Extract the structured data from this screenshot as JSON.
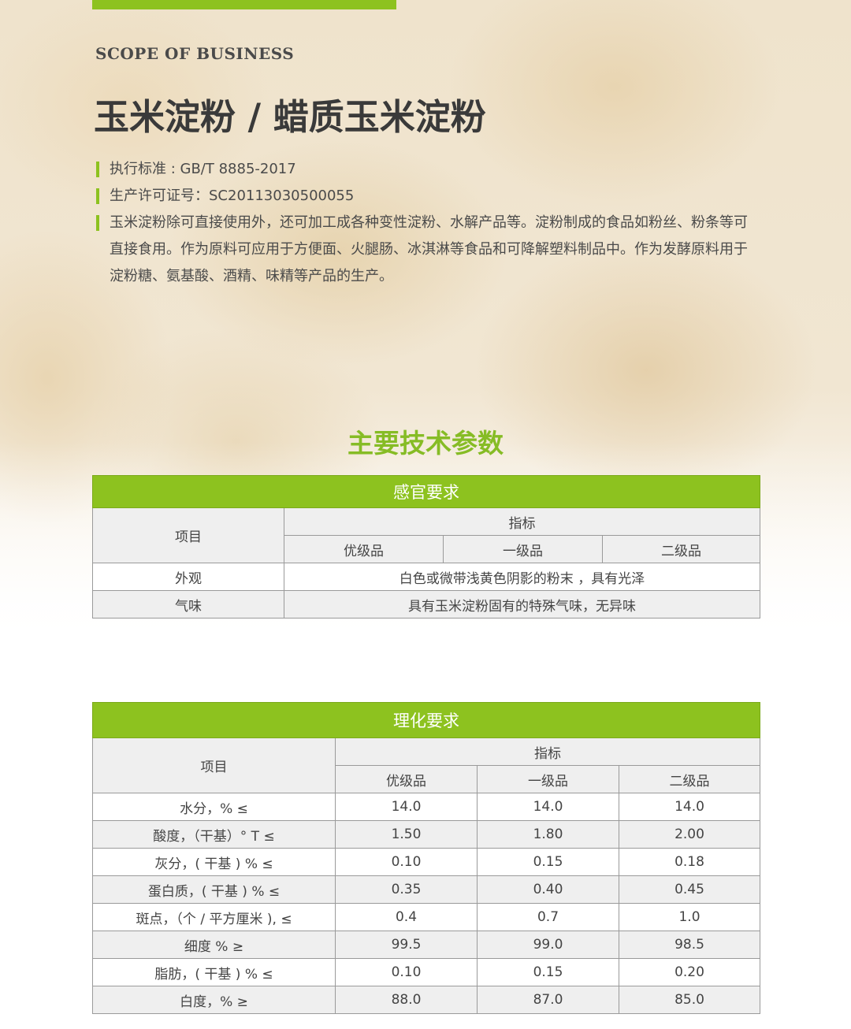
{
  "header": {
    "scope": "SCOPE OF BUSINESS",
    "title": "玉米淀粉 / 蜡质玉米淀粉"
  },
  "info": [
    "执行标准 : GB/T 8885-2017",
    "生产许可证号：SC20113030500055",
    "玉米淀粉除可直接使用外，还可加工成各种变性淀粉、水解产品等。淀粉制成的食品如粉丝、粉条等可",
    "直接食用。作为原料可应用于方便面、火腿肠、冰淇淋等食品和可降解塑料制品中。作为发酵原料用于",
    "淀粉糖、氨基酸、酒精、味精等产品的生产。"
  ],
  "section_title": "主要技术参数",
  "colors": {
    "accent": "#8dc21f"
  },
  "sensory": {
    "title": "感官要求",
    "item": "项目",
    "index": "指标",
    "grades": [
      "优级品",
      "一级品",
      "二级品"
    ],
    "rows": [
      {
        "name": "外观",
        "value": "白色或微带浅黄色阴影的粉末 ，具有光泽"
      },
      {
        "name": "气味",
        "value": "具有玉米淀粉固有的特殊气味，无异味"
      }
    ]
  },
  "physchem": {
    "title": "理化要求",
    "item": "项目",
    "index": "指标",
    "grades": [
      "优级品",
      "一级品",
      "二级品"
    ],
    "rows": [
      {
        "name": "水分，% ≤",
        "values": [
          "14.0",
          "14.0",
          "14.0"
        ]
      },
      {
        "name": "酸度，（干基）° T ≤",
        "values": [
          "1.50",
          "1.80",
          "2.00"
        ]
      },
      {
        "name": "灰分，( 干基 ) % ≤",
        "values": [
          "0.10",
          "0.15",
          "0.18"
        ]
      },
      {
        "name": "蛋白质，( 干基 ) % ≤",
        "values": [
          "0.35",
          "0.40",
          "0.45"
        ]
      },
      {
        "name": "斑点，（个 / 平方厘米 ), ≤",
        "values": [
          "0.4",
          "0.7",
          "1.0"
        ]
      },
      {
        "name": "细度 % ≥",
        "values": [
          "99.5",
          "99.0",
          "98.5"
        ]
      },
      {
        "name": "脂肪，( 干基 ) % ≤",
        "values": [
          "0.10",
          "0.15",
          "0.20"
        ]
      },
      {
        "name": "白度，% ≥",
        "values": [
          "88.0",
          "87.0",
          "85.0"
        ]
      }
    ]
  }
}
